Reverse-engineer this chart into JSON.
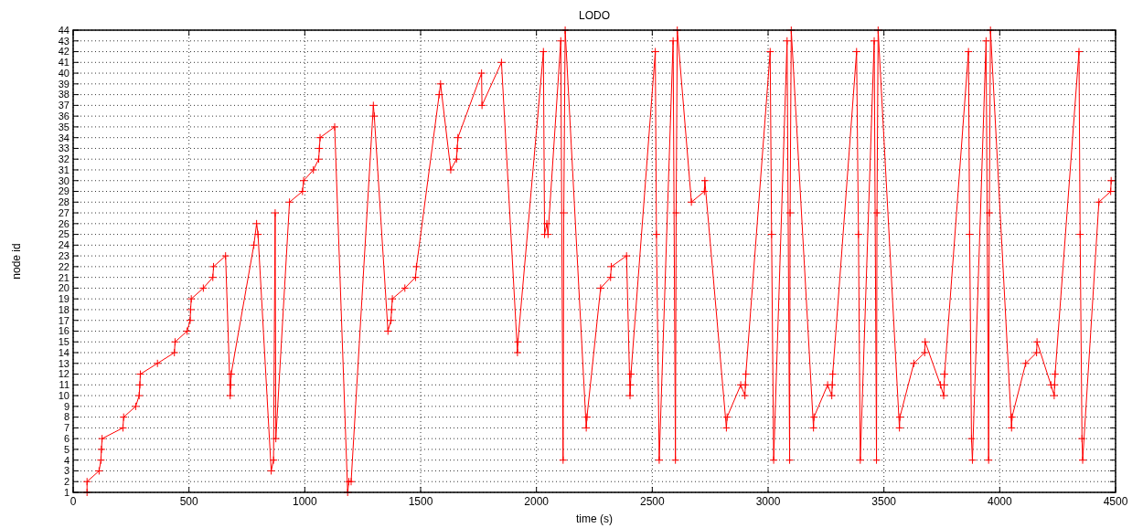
{
  "chart_data": {
    "type": "line",
    "title": "LODO",
    "xlabel": "time (s)",
    "ylabel": "node id",
    "xlim": [
      0,
      4500
    ],
    "xticks": [
      0,
      500,
      1000,
      1500,
      2000,
      2500,
      3000,
      3500,
      4000,
      4500
    ],
    "ylim": [
      1,
      44
    ],
    "yticks": [
      1,
      2,
      3,
      4,
      5,
      6,
      7,
      8,
      9,
      10,
      11,
      12,
      13,
      14,
      15,
      16,
      17,
      18,
      19,
      20,
      21,
      22,
      23,
      24,
      25,
      26,
      27,
      28,
      29,
      30,
      31,
      32,
      33,
      34,
      35,
      36,
      37,
      38,
      39,
      40,
      41,
      42,
      43,
      44
    ],
    "grid": true,
    "marker": "cross",
    "line_style": "solid",
    "series": [
      {
        "color": "#ff0000",
        "x": [
          60,
          60,
          112,
          120,
          122,
          125,
          215,
          218,
          270,
          285,
          288,
          290,
          364,
          437,
          440,
          492,
          505,
          507,
          510,
          562,
          603,
          606,
          658,
          678,
          680,
          682,
          780,
          792,
          798,
          855,
          865,
          872,
          875,
          934,
          990,
          995,
          1037,
          1060,
          1063,
          1066,
          1129,
          1185,
          1190,
          1200,
          1296,
          1300,
          1359,
          1372,
          1375,
          1378,
          1432,
          1478,
          1482,
          1580,
          1586,
          1630,
          1655,
          1658,
          1661,
          1763,
          1765,
          1849,
          1918,
          1920,
          2030,
          2035,
          2045,
          2050,
          2105,
          2115,
          2118,
          2124,
          2215,
          2218,
          2277,
          2320,
          2323,
          2389,
          2404,
          2406,
          2408,
          2513,
          2518,
          2530,
          2590,
          2600,
          2603,
          2608,
          2669,
          2725,
          2727,
          2820,
          2823,
          2882,
          2900,
          2902,
          2904,
          3009,
          3015,
          3024,
          3082,
          3093,
          3095,
          3100,
          3196,
          3198,
          3257,
          3275,
          3277,
          3279,
          3382,
          3390,
          3398,
          3458,
          3468,
          3470,
          3475,
          3567,
          3569,
          3629,
          3676,
          3678,
          3744,
          3758,
          3760,
          3762,
          3865,
          3870,
          3878,
          3882,
          3941,
          3952,
          3955,
          3960,
          4051,
          4053,
          4112,
          4159,
          4161,
          4221,
          4235,
          4237,
          4239,
          4342,
          4347,
          4355,
          4358,
          4428,
          4479,
          4481
        ],
        "values": [
          1,
          2,
          3,
          4,
          5,
          6,
          7,
          8,
          9,
          10,
          11,
          12,
          13,
          14,
          15,
          16,
          17,
          18,
          19,
          20,
          21,
          22,
          23,
          10,
          11,
          12,
          24,
          26,
          25,
          3,
          4,
          27,
          6,
          28,
          29,
          30,
          31,
          32,
          33,
          34,
          35,
          1,
          2,
          2,
          37,
          36,
          16,
          17,
          18,
          19,
          20,
          21,
          22,
          38,
          39,
          31,
          32,
          33,
          34,
          40,
          37,
          41,
          14,
          15,
          42,
          25,
          26,
          25,
          43,
          4,
          27,
          44,
          7,
          8,
          20,
          21,
          22,
          23,
          10,
          11,
          12,
          42,
          25,
          4,
          43,
          4,
          27,
          44,
          28,
          29,
          30,
          7,
          8,
          11,
          10,
          11,
          12,
          42,
          25,
          4,
          43,
          4,
          27,
          44,
          7,
          8,
          11,
          10,
          11,
          12,
          42,
          25,
          4,
          43,
          4,
          27,
          44,
          7,
          8,
          13,
          14,
          15,
          11,
          10,
          11,
          12,
          42,
          25,
          6,
          4,
          43,
          4,
          27,
          44,
          7,
          8,
          13,
          14,
          15,
          11,
          10,
          11,
          12,
          42,
          25,
          6,
          4,
          28,
          29,
          30
        ]
      }
    ]
  }
}
